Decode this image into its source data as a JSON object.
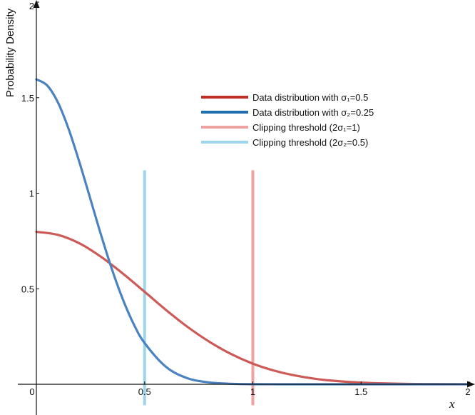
{
  "chart_data": {
    "type": "line",
    "title": "",
    "xlabel": "x",
    "ylabel": "Probability Density",
    "xlim": [
      0,
      2
    ],
    "ylim": [
      0,
      2
    ],
    "x_ticks": [
      {
        "value": 0,
        "label": "0"
      },
      {
        "value": 0.5,
        "label": "0.5"
      },
      {
        "value": 1,
        "label": "1"
      },
      {
        "value": 1.5,
        "label": "1.5"
      },
      {
        "value": 2,
        "label": "2"
      }
    ],
    "y_ticks": [
      {
        "value": 0.5,
        "label": "0.5"
      },
      {
        "value": 1,
        "label": "1"
      },
      {
        "value": 1.5,
        "label": "1.5"
      },
      {
        "value": 2,
        "label": "2"
      }
    ],
    "grid": false,
    "legend_position": "top-right",
    "series": [
      {
        "name": "Data distribution with σ₁=0.5",
        "kind": "curve",
        "color": "#cd5a57",
        "legend_color": "#c0302b",
        "x": [
          0,
          0.1,
          0.2,
          0.3,
          0.4,
          0.5,
          0.6,
          0.7,
          0.8,
          0.9,
          1.0,
          1.1,
          1.2,
          1.3,
          1.4,
          1.5,
          1.6,
          1.7,
          1.8,
          1.9,
          2.0
        ],
        "y": [
          0.798,
          0.782,
          0.737,
          0.666,
          0.579,
          0.484,
          0.388,
          0.299,
          0.222,
          0.158,
          0.108,
          0.071,
          0.045,
          0.027,
          0.016,
          0.009,
          0.0047,
          0.0024,
          0.0012,
          0.0006,
          0.0003
        ]
      },
      {
        "name": "Data distribution with σ₂=0.25",
        "kind": "curve",
        "color": "#4a83c0",
        "legend_color": "#1f6fb0",
        "x": [
          0,
          0.05,
          0.1,
          0.15,
          0.2,
          0.25,
          0.3,
          0.35,
          0.4,
          0.45,
          0.5,
          0.6,
          0.7,
          0.8,
          0.9,
          1.0,
          1.2,
          1.4,
          1.6,
          1.8,
          2.0
        ],
        "y": [
          1.596,
          1.564,
          1.474,
          1.333,
          1.158,
          0.968,
          0.777,
          0.599,
          0.443,
          0.314,
          0.216,
          0.09,
          0.031,
          0.0096,
          0.0025,
          0.0005,
          0,
          0,
          0,
          0,
          0
        ]
      },
      {
        "name": "Clipping threshold (2σ₁=1)",
        "kind": "vline",
        "color": "#eea3a2",
        "x": 1
      },
      {
        "name": "Clipping threshold (2σ₂=0.5)",
        "kind": "vline",
        "color": "#9dd5ea",
        "x": 0.5
      }
    ]
  }
}
